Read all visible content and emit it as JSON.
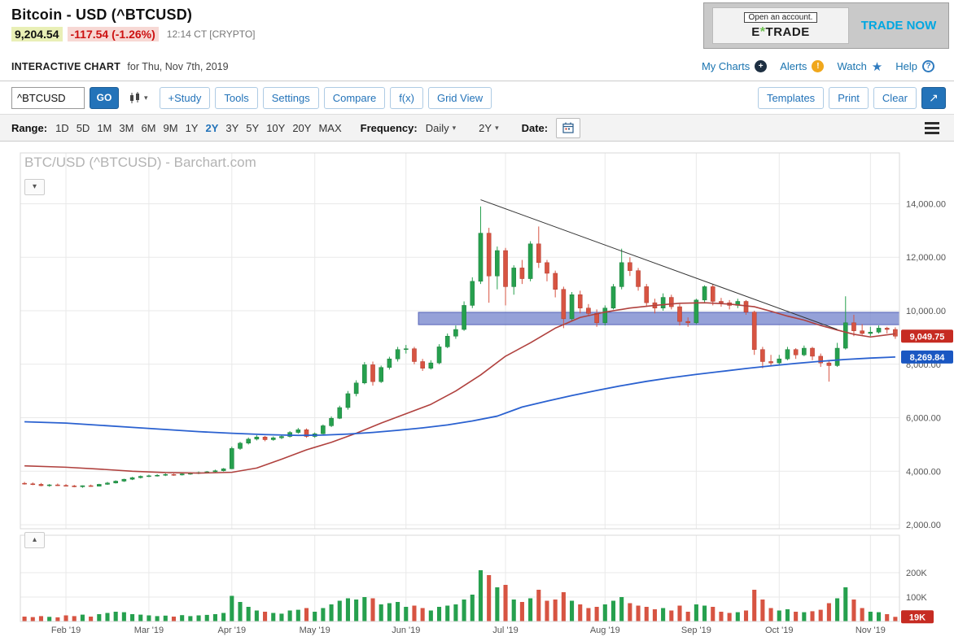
{
  "header": {
    "title": "Bitcoin - USD (^BTCUSD)",
    "price": "9,204.54",
    "change": "-117.54 (-1.26%)",
    "timestamp": "12:14 CT [CRYPTO]",
    "ad": {
      "open_account": "Open an account.",
      "brand_e": "E",
      "brand_star": "*",
      "brand_trade": "TRADE",
      "cta": "TRADE NOW"
    }
  },
  "subheader": {
    "label": "INTERACTIVE CHART",
    "date_text": "for Thu, Nov 7th, 2019",
    "links": {
      "my_charts": "My Charts",
      "alerts": "Alerts",
      "watch": "Watch",
      "help": "Help"
    }
  },
  "toolbar": {
    "symbol_value": "^BTCUSD",
    "go": "GO",
    "buttons": [
      "+Study",
      "Tools",
      "Settings",
      "Compare",
      "f(x)",
      "Grid View"
    ],
    "right_buttons": [
      "Templates",
      "Print",
      "Clear"
    ]
  },
  "rangebar": {
    "range_label": "Range:",
    "ranges": [
      "1D",
      "5D",
      "1M",
      "3M",
      "6M",
      "9M",
      "1Y",
      "2Y",
      "3Y",
      "5Y",
      "10Y",
      "20Y",
      "MAX"
    ],
    "selected_range": "2Y",
    "frequency_label": "Frequency:",
    "frequency_value": "Daily",
    "period_value": "2Y",
    "date_label": "Date:"
  },
  "chart": {
    "watermark": "BTC/USD (^BTCUSD) - Barchart.com",
    "price_badge": "9,049.75",
    "ma_badge": "8,269.84",
    "volume_badge": "19K"
  },
  "colors": {
    "up": "#26a04e",
    "down": "#d75442",
    "up_dark": "#1d7d3c",
    "down_dark": "#b23a2e",
    "ma_red": "#b0413e",
    "ma_blue": "#2a61d0",
    "band_fill": "#7b8ace",
    "band_stroke": "#5563b8",
    "grid": "#e9e9e9",
    "border": "#d9d9d9",
    "badge_red": "#c62b22",
    "badge_blue": "#1a57c2",
    "accent_blue": "#2373b9",
    "link_blue": "#1a74b0"
  },
  "chart_data": {
    "type": "candlestick+volume",
    "symbol": "^BTCUSD",
    "title": "BTC/USD (^BTCUSD) - Barchart.com",
    "y_axis": {
      "min": 1850,
      "max": 15900,
      "gridstep": 2000
    },
    "y_axis_labels": [
      {
        "text": "14,000.00",
        "price": 14000
      },
      {
        "text": "12,000.00",
        "price": 12000
      },
      {
        "text": "10,000.00",
        "price": 10000
      },
      {
        "text": "8,000.00",
        "price": 8000
      },
      {
        "text": "6,000.00",
        "price": 6000
      },
      {
        "text": "4,000.00",
        "price": 4000
      },
      {
        "text": "2,000.00",
        "price": 2000
      }
    ],
    "vol_axis_labels": [
      {
        "text": "200K",
        "v": 200
      },
      {
        "text": "100K",
        "v": 100
      }
    ],
    "x_ticks": [
      {
        "label": "Feb '19",
        "i": 5
      },
      {
        "label": "Mar '19",
        "i": 15
      },
      {
        "label": "Apr '19",
        "i": 25
      },
      {
        "label": "May '19",
        "i": 35
      },
      {
        "label": "Jun '19",
        "i": 46
      },
      {
        "label": "Jul '19",
        "i": 58
      },
      {
        "label": "Aug '19",
        "i": 70
      },
      {
        "label": "Sep '19",
        "i": 81
      },
      {
        "label": "Oct '19",
        "i": 91
      },
      {
        "label": "Nov '19",
        "i": 102
      }
    ],
    "candles": [
      [
        3550,
        3600,
        3500,
        3530,
        20
      ],
      [
        3530,
        3580,
        3480,
        3510,
        18
      ],
      [
        3510,
        3560,
        3440,
        3460,
        22
      ],
      [
        3460,
        3520,
        3420,
        3490,
        19
      ],
      [
        3490,
        3540,
        3450,
        3470,
        17
      ],
      [
        3470,
        3520,
        3430,
        3450,
        25
      ],
      [
        3450,
        3490,
        3400,
        3420,
        22
      ],
      [
        3420,
        3470,
        3380,
        3460,
        28
      ],
      [
        3460,
        3500,
        3420,
        3440,
        20
      ],
      [
        3440,
        3530,
        3430,
        3510,
        30
      ],
      [
        3510,
        3600,
        3490,
        3560,
        35
      ],
      [
        3560,
        3660,
        3540,
        3630,
        40
      ],
      [
        3630,
        3720,
        3600,
        3700,
        38
      ],
      [
        3700,
        3790,
        3670,
        3760,
        30
      ],
      [
        3760,
        3840,
        3730,
        3810,
        28
      ],
      [
        3810,
        3870,
        3780,
        3830,
        25
      ],
      [
        3830,
        3890,
        3800,
        3850,
        22
      ],
      [
        3850,
        3920,
        3820,
        3880,
        24
      ],
      [
        3880,
        3910,
        3830,
        3860,
        20
      ],
      [
        3860,
        3940,
        3840,
        3900,
        26
      ],
      [
        3900,
        3960,
        3870,
        3920,
        22
      ],
      [
        3920,
        3990,
        3890,
        3950,
        25
      ],
      [
        3950,
        4010,
        3920,
        3980,
        27
      ],
      [
        3980,
        4060,
        3950,
        4020,
        30
      ],
      [
        4020,
        4120,
        3990,
        4090,
        35
      ],
      [
        4090,
        4920,
        4080,
        4850,
        105
      ],
      [
        4850,
        5100,
        4800,
        5050,
        80
      ],
      [
        5050,
        5260,
        5000,
        5200,
        60
      ],
      [
        5200,
        5350,
        5150,
        5280,
        45
      ],
      [
        5280,
        5320,
        5120,
        5180,
        40
      ],
      [
        5180,
        5300,
        5140,
        5250,
        35
      ],
      [
        5250,
        5360,
        5200,
        5300,
        32
      ],
      [
        5300,
        5500,
        5260,
        5450,
        45
      ],
      [
        5450,
        5620,
        5400,
        5550,
        48
      ],
      [
        5550,
        5600,
        5250,
        5300,
        55
      ],
      [
        5300,
        5450,
        5250,
        5400,
        40
      ],
      [
        5400,
        5750,
        5380,
        5700,
        55
      ],
      [
        5700,
        6050,
        5650,
        5980,
        70
      ],
      [
        5980,
        6450,
        5950,
        6380,
        85
      ],
      [
        6380,
        7000,
        6300,
        6900,
        95
      ],
      [
        6900,
        7400,
        6800,
        7300,
        90
      ],
      [
        7300,
        8080,
        7250,
        7980,
        100
      ],
      [
        7980,
        8100,
        7200,
        7350,
        95
      ],
      [
        7350,
        7950,
        7300,
        7880,
        70
      ],
      [
        7880,
        8280,
        7800,
        8200,
        75
      ],
      [
        8200,
        8650,
        8100,
        8550,
        80
      ],
      [
        8550,
        8720,
        8400,
        8580,
        60
      ],
      [
        8580,
        8650,
        8000,
        8100,
        65
      ],
      [
        8100,
        8200,
        7750,
        7850,
        55
      ],
      [
        7850,
        8150,
        7800,
        8050,
        45
      ],
      [
        8050,
        8750,
        8000,
        8650,
        60
      ],
      [
        8650,
        9150,
        8600,
        9050,
        65
      ],
      [
        9050,
        9450,
        8950,
        9300,
        70
      ],
      [
        9300,
        10350,
        9250,
        10200,
        90
      ],
      [
        10200,
        11250,
        10100,
        11100,
        110
      ],
      [
        11100,
        13900,
        11000,
        12900,
        210
      ],
      [
        12900,
        13100,
        10300,
        11300,
        190
      ],
      [
        11300,
        12400,
        10800,
        12250,
        140
      ],
      [
        12250,
        12350,
        10200,
        10900,
        150
      ],
      [
        10900,
        11700,
        10600,
        11600,
        90
      ],
      [
        11600,
        11900,
        11000,
        11200,
        80
      ],
      [
        11200,
        12600,
        11100,
        12500,
        95
      ],
      [
        12500,
        13150,
        11600,
        11800,
        130
      ],
      [
        11800,
        11900,
        11100,
        11400,
        85
      ],
      [
        11400,
        11500,
        10500,
        10800,
        90
      ],
      [
        10800,
        10900,
        9350,
        9700,
        120
      ],
      [
        9700,
        10700,
        9600,
        10600,
        85
      ],
      [
        10600,
        10750,
        9900,
        10100,
        70
      ],
      [
        10100,
        10250,
        9800,
        9900,
        55
      ],
      [
        9900,
        10050,
        9400,
        9550,
        60
      ],
      [
        9550,
        10200,
        9450,
        10100,
        70
      ],
      [
        10100,
        11000,
        10050,
        10900,
        85
      ],
      [
        10900,
        12320,
        10800,
        11800,
        100
      ],
      [
        11800,
        12000,
        11300,
        11500,
        75
      ],
      [
        11500,
        11600,
        10750,
        10900,
        65
      ],
      [
        10900,
        11000,
        10150,
        10300,
        60
      ],
      [
        10300,
        10450,
        9900,
        10100,
        50
      ],
      [
        10100,
        10650,
        10000,
        10500,
        55
      ],
      [
        10500,
        10600,
        10050,
        10150,
        45
      ],
      [
        10150,
        10250,
        9450,
        9600,
        65
      ],
      [
        9600,
        9750,
        9400,
        9550,
        40
      ],
      [
        9550,
        10450,
        9500,
        10400,
        70
      ],
      [
        10400,
        10950,
        10300,
        10900,
        65
      ],
      [
        10900,
        11000,
        10200,
        10350,
        60
      ],
      [
        10350,
        10480,
        10150,
        10300,
        40
      ],
      [
        10300,
        10400,
        10050,
        10200,
        35
      ],
      [
        10200,
        10450,
        10100,
        10350,
        38
      ],
      [
        10350,
        10400,
        9850,
        9950,
        45
      ],
      [
        9950,
        10000,
        8350,
        8550,
        130
      ],
      [
        8550,
        8650,
        7850,
        8100,
        90
      ],
      [
        8100,
        8350,
        7950,
        8050,
        55
      ],
      [
        8050,
        8350,
        7950,
        8200,
        45
      ],
      [
        8200,
        8650,
        8150,
        8550,
        50
      ],
      [
        8550,
        8600,
        8200,
        8350,
        40
      ],
      [
        8350,
        8700,
        8300,
        8600,
        38
      ],
      [
        8600,
        8650,
        8150,
        8300,
        42
      ],
      [
        8300,
        8400,
        7900,
        8050,
        48
      ],
      [
        8050,
        8150,
        7350,
        7950,
        75
      ],
      [
        7950,
        8800,
        7900,
        8600,
        95
      ],
      [
        8600,
        10540,
        8550,
        9550,
        140
      ],
      [
        9550,
        9850,
        9050,
        9250,
        90
      ],
      [
        9250,
        9500,
        9100,
        9150,
        55
      ],
      [
        9150,
        9400,
        9050,
        9200,
        40
      ],
      [
        9200,
        9450,
        9150,
        9350,
        38
      ],
      [
        9350,
        9400,
        9150,
        9300,
        30
      ],
      [
        9300,
        9380,
        8950,
        9049.75,
        19
      ]
    ],
    "ma_fast_red": [
      [
        0,
        4200
      ],
      [
        5,
        4150
      ],
      [
        9,
        4080
      ],
      [
        13,
        4000
      ],
      [
        17,
        3950
      ],
      [
        21,
        3930
      ],
      [
        25,
        3960
      ],
      [
        28,
        4120
      ],
      [
        31,
        4450
      ],
      [
        34,
        4800
      ],
      [
        37,
        5080
      ],
      [
        40,
        5420
      ],
      [
        43,
        5800
      ],
      [
        46,
        6150
      ],
      [
        49,
        6500
      ],
      [
        52,
        7000
      ],
      [
        55,
        7600
      ],
      [
        58,
        8300
      ],
      [
        61,
        8800
      ],
      [
        64,
        9350
      ],
      [
        67,
        9750
      ],
      [
        70,
        9950
      ],
      [
        73,
        10100
      ],
      [
        76,
        10200
      ],
      [
        79,
        10280
      ],
      [
        82,
        10300
      ],
      [
        85,
        10250
      ],
      [
        88,
        10150
      ],
      [
        90,
        9980
      ],
      [
        92,
        9800
      ],
      [
        94,
        9650
      ],
      [
        96,
        9450
      ],
      [
        98,
        9280
      ],
      [
        100,
        9120
      ],
      [
        102,
        9020
      ],
      [
        105,
        9140
      ]
    ],
    "ma_slow_blue": [
      [
        0,
        5850
      ],
      [
        5,
        5800
      ],
      [
        9,
        5720
      ],
      [
        13,
        5640
      ],
      [
        17,
        5560
      ],
      [
        21,
        5480
      ],
      [
        25,
        5420
      ],
      [
        29,
        5370
      ],
      [
        33,
        5340
      ],
      [
        36,
        5350
      ],
      [
        39,
        5390
      ],
      [
        42,
        5450
      ],
      [
        45,
        5530
      ],
      [
        48,
        5620
      ],
      [
        51,
        5730
      ],
      [
        54,
        5880
      ],
      [
        57,
        6060
      ],
      [
        60,
        6400
      ],
      [
        63,
        6620
      ],
      [
        66,
        6830
      ],
      [
        69,
        7020
      ],
      [
        72,
        7200
      ],
      [
        75,
        7360
      ],
      [
        78,
        7500
      ],
      [
        81,
        7620
      ],
      [
        84,
        7730
      ],
      [
        87,
        7840
      ],
      [
        90,
        7940
      ],
      [
        93,
        8030
      ],
      [
        96,
        8110
      ],
      [
        99,
        8180
      ],
      [
        102,
        8230
      ],
      [
        105,
        8270
      ]
    ],
    "trendline": {
      "from_index": 55,
      "from_price": 14150,
      "to_index": 98,
      "to_price": 9300
    },
    "band": {
      "price_from": 9480,
      "price_to": 9940,
      "start_index": 47.5
    },
    "last_price": 9049.75,
    "ma_slow_last": 8269.84,
    "last_volume_k": 19
  }
}
